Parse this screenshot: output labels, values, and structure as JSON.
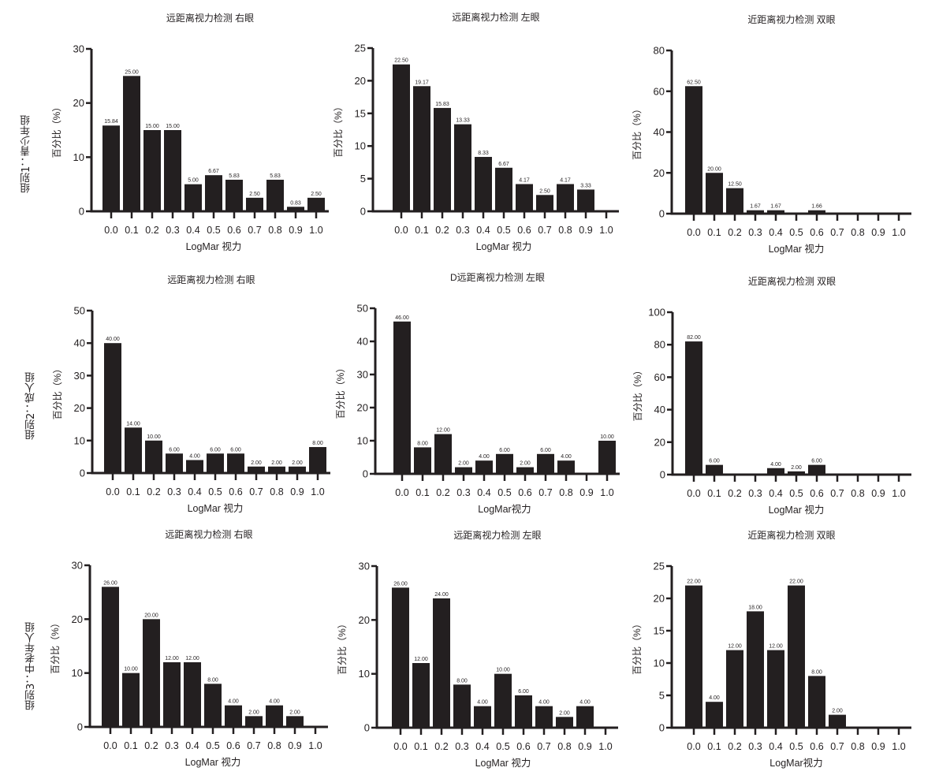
{
  "row_labels": [
    "组别1：青少年组",
    "组别2：成人组",
    "组别3：中老年人组"
  ],
  "bar_color": "#231f20",
  "chart_data": [
    {
      "type": "bar",
      "title": "远距离视力检测  右眼",
      "xlabel": "LogMar 视力",
      "ylabel": "百分比（%）",
      "categories": [
        "0.0",
        "0.1",
        "0.2",
        "0.3",
        "0.4",
        "0.5",
        "0.6",
        "0.7",
        "0.8",
        "0.9",
        "1.0"
      ],
      "values": [
        15.84,
        25.0,
        15.0,
        15.0,
        5.0,
        6.67,
        5.83,
        2.5,
        5.83,
        0.83,
        2.5
      ],
      "labels": [
        "15.84",
        "25.00",
        "15.00",
        "15.00",
        "5.00",
        "6.67",
        "5.83",
        "2.50",
        "5.83",
        "0.83",
        "2.50"
      ],
      "ylim": [
        0,
        30
      ],
      "yticks": [
        0,
        10,
        20,
        30
      ],
      "grid": false
    },
    {
      "type": "bar",
      "title": "远距离视力检测 左眼",
      "xlabel": "LogMar 视力",
      "ylabel": "百分比（%）",
      "categories": [
        "0.0",
        "0.1",
        "0.2",
        "0.3",
        "0.4",
        "0.5",
        "0.6",
        "0.7",
        "0.8",
        "0.9",
        "1.0"
      ],
      "values": [
        22.5,
        19.17,
        15.83,
        13.33,
        8.33,
        6.67,
        4.17,
        2.5,
        4.17,
        3.33,
        0
      ],
      "labels": [
        "22.50",
        "19.17",
        "15.83",
        "13.33",
        "8.33",
        "6.67",
        "4.17",
        "2.50",
        "4.17",
        "3.33",
        ""
      ],
      "ylim": [
        0,
        25
      ],
      "yticks": [
        0,
        5,
        10,
        15,
        20,
        25
      ],
      "grid": false
    },
    {
      "type": "bar",
      "title": "近距离视力检测 双眼",
      "xlabel": "LogMar 视力",
      "ylabel": "百分比（%）",
      "categories": [
        "0.0",
        "0.1",
        "0.2",
        "0.3",
        "0.4",
        "0.5",
        "0.6",
        "0.7",
        "0.8",
        "0.9",
        "1.0"
      ],
      "values": [
        62.5,
        20.0,
        12.5,
        1.67,
        1.67,
        0.5,
        1.66,
        0,
        0,
        0,
        0
      ],
      "labels": [
        "62.50",
        "20.00",
        "12.50",
        "1.67",
        "1.67",
        "",
        "1.66",
        "",
        "",
        "",
        ""
      ],
      "ylim": [
        0,
        80
      ],
      "yticks": [
        0,
        20,
        40,
        60,
        80
      ],
      "grid": false
    },
    {
      "type": "bar",
      "title": "远距离视力检测  右眼",
      "xlabel": "LogMar 视力",
      "ylabel": "百分比（%）",
      "categories": [
        "0.0",
        "0.1",
        "0.2",
        "0.3",
        "0.4",
        "0.5",
        "0.6",
        "0.7",
        "0.8",
        "0.9",
        "1.0"
      ],
      "values": [
        40.0,
        14.0,
        10.0,
        6.0,
        4.0,
        6.0,
        6.0,
        2.0,
        2.0,
        2.0,
        8.0
      ],
      "labels": [
        "40.00",
        "14.00",
        "10.00",
        "6.00",
        "4.00",
        "6.00",
        "6.00",
        "2.00",
        "2.00",
        "2.00",
        "8.00"
      ],
      "ylim": [
        0,
        50
      ],
      "yticks": [
        0,
        10,
        20,
        30,
        40,
        50
      ],
      "grid": false
    },
    {
      "type": "bar",
      "title": "D远距离视力检测  左眼",
      "xlabel": "LogMar视力",
      "ylabel": "百分比（%）",
      "categories": [
        "0.0",
        "0.1",
        "0.2",
        "0.3",
        "0.4",
        "0.5",
        "0.6",
        "0.7",
        "0.8",
        "0.9",
        "1.0"
      ],
      "values": [
        46.0,
        8.0,
        12.0,
        2.0,
        4.0,
        6.0,
        2.0,
        6.0,
        4.0,
        0,
        10.0
      ],
      "labels": [
        "46.00",
        "8.00",
        "12.00",
        "2.00",
        "4.00",
        "6.00",
        "2.00",
        "6.00",
        "4.00",
        "",
        "10.00"
      ],
      "ylim": [
        0,
        50
      ],
      "yticks": [
        0,
        10,
        20,
        30,
        40,
        50
      ],
      "grid": false
    },
    {
      "type": "bar",
      "title": "近距离视力检测  双眼",
      "xlabel": "LogMar 视力",
      "ylabel": "百分比（%）",
      "categories": [
        "0.0",
        "0.1",
        "0.2",
        "0.3",
        "0.4",
        "0.5",
        "0.6",
        "0.7",
        "0.8",
        "0.9",
        "1.0"
      ],
      "values": [
        82.0,
        6.0,
        0.4,
        0.4,
        4.0,
        2.0,
        6.0,
        0,
        0,
        0,
        0
      ],
      "labels": [
        "82.00",
        "6.00",
        "",
        "",
        "4.00",
        "2.00",
        "6.00",
        "",
        "",
        "",
        ""
      ],
      "ylim": [
        0,
        100
      ],
      "yticks": [
        0,
        20,
        40,
        60,
        80,
        100
      ],
      "grid": false
    },
    {
      "type": "bar",
      "title": "远距离视力检测 右眼",
      "xlabel": "LogMar 视力",
      "ylabel": "百分比（%）",
      "categories": [
        "0.0",
        "0.1",
        "0.2",
        "0.3",
        "0.4",
        "0.5",
        "0.6",
        "0.7",
        "0.8",
        "0.9",
        "1.0"
      ],
      "values": [
        26.0,
        10.0,
        20.0,
        12.0,
        12.0,
        8.0,
        4.0,
        2.0,
        4.0,
        2.0,
        0
      ],
      "labels": [
        "26.00",
        "10.00",
        "20.00",
        "12.00",
        "12.00",
        "8.00",
        "4.00",
        "2.00",
        "4.00",
        "2.00",
        ""
      ],
      "ylim": [
        0,
        30
      ],
      "yticks": [
        0,
        10,
        20,
        30
      ],
      "grid": false
    },
    {
      "type": "bar",
      "title": "远距离视力检测  左眼",
      "xlabel": "LogMar 视力",
      "ylabel": "百分比（%）",
      "categories": [
        "0.0",
        "0.1",
        "0.2",
        "0.3",
        "0.4",
        "0.5",
        "0.6",
        "0.7",
        "0.8",
        "0.9",
        "1.0"
      ],
      "values": [
        26.0,
        12.0,
        24.0,
        8.0,
        4.0,
        10.0,
        6.0,
        4.0,
        2.0,
        4.0,
        0
      ],
      "labels": [
        "26.00",
        "12.00",
        "24.00",
        "8.00",
        "4.00",
        "10.00",
        "6.00",
        "4.00",
        "2.00",
        "4.00",
        ""
      ],
      "ylim": [
        0,
        30
      ],
      "yticks": [
        0,
        10,
        20,
        30
      ],
      "grid": false
    },
    {
      "type": "bar",
      "title": "近距离视力检测 双眼",
      "xlabel": "LogMar视力",
      "ylabel": "百分比（%）",
      "categories": [
        "0.0",
        "0.1",
        "0.2",
        "0.3",
        "0.4",
        "0.5",
        "0.6",
        "0.7",
        "0.8",
        "0.9",
        "1.0"
      ],
      "values": [
        22.0,
        4.0,
        12.0,
        18.0,
        12.0,
        22.0,
        8.0,
        2.0,
        0,
        0,
        0
      ],
      "labels": [
        "22.00",
        "4.00",
        "12.00",
        "18.00",
        "12.00",
        "22.00",
        "8.00",
        "2.00",
        "",
        "",
        ""
      ],
      "ylim": [
        0,
        25
      ],
      "yticks": [
        0,
        5,
        10,
        15,
        20,
        25
      ],
      "grid": false
    }
  ]
}
